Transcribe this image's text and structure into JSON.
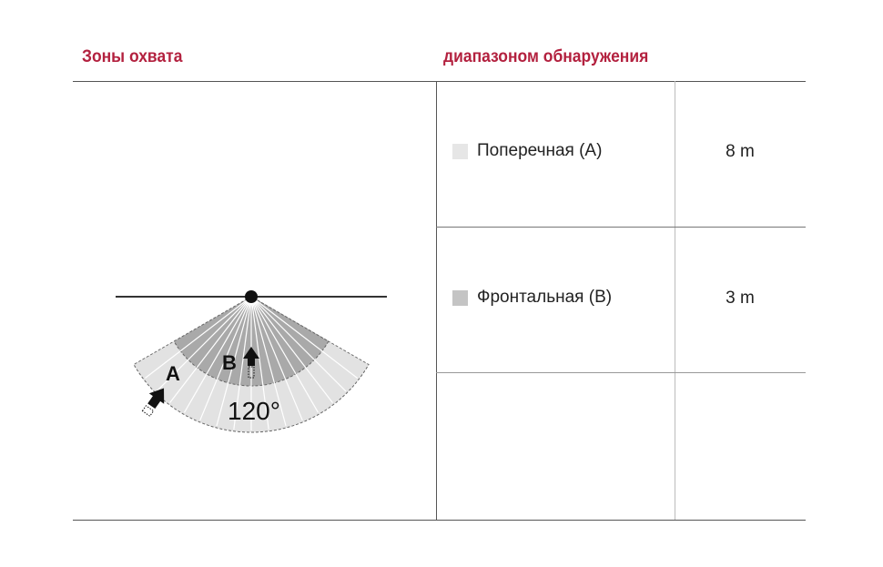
{
  "headers": {
    "zones": "Зоны охвата",
    "range": "диапазоном обнаружения"
  },
  "diagram": {
    "label_a": "A",
    "label_b": "B",
    "angle": "120°",
    "colors": {
      "zone_a": "#e2e2e2",
      "zone_b": "#a9a9a9"
    }
  },
  "rows": [
    {
      "label": "Поперечная (A)",
      "value": "8 m",
      "swatch": "#e6e6e6"
    },
    {
      "label": "Фронтальная (B)",
      "value": "3 m",
      "swatch": "#c4c4c4"
    }
  ]
}
